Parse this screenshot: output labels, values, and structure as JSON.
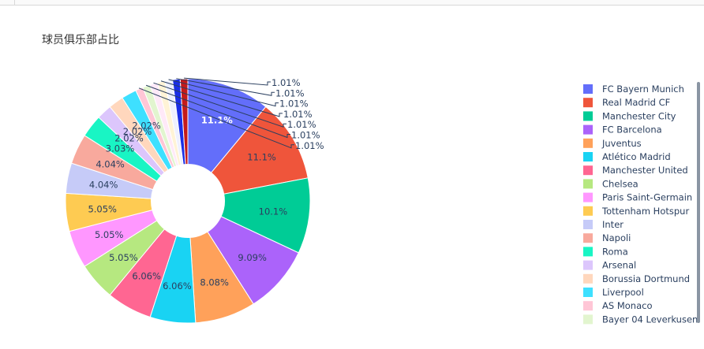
{
  "title": "球员俱乐部占比",
  "colors": {
    "label_dark": "#2a3f5f",
    "label_light": "#ffffff",
    "connector": "#2a3f5f"
  },
  "chart_data": {
    "type": "pie",
    "hole": 0.3,
    "title": "球员俱乐部占比",
    "legend_position": "right",
    "slices": [
      {
        "label": "FC Bayern Munich",
        "value": 11.1,
        "text": "11.1%",
        "color": "#636efa"
      },
      {
        "label": "Real Madrid CF",
        "value": 11.1,
        "text": "11.1%",
        "color": "#EF553B"
      },
      {
        "label": "Manchester City",
        "value": 10.1,
        "text": "10.1%",
        "color": "#00cc96"
      },
      {
        "label": "FC Barcelona",
        "value": 9.09,
        "text": "9.09%",
        "color": "#ab63fa"
      },
      {
        "label": "Juventus",
        "value": 8.08,
        "text": "8.08%",
        "color": "#FFA15A"
      },
      {
        "label": "Atlético Madrid",
        "value": 6.06,
        "text": "6.06%",
        "color": "#19d3f3"
      },
      {
        "label": "Manchester United",
        "value": 6.06,
        "text": "6.06%",
        "color": "#FF6692"
      },
      {
        "label": "Chelsea",
        "value": 5.05,
        "text": "5.05%",
        "color": "#B6E880"
      },
      {
        "label": "Paris Saint-Germain",
        "value": 5.05,
        "text": "5.05%",
        "color": "#FF97FF"
      },
      {
        "label": "Tottenham Hotspur",
        "value": 5.05,
        "text": "5.05%",
        "color": "#FECB52"
      },
      {
        "label": "Inter",
        "value": 4.04,
        "text": "4.04%",
        "color": "#c6cbf8"
      },
      {
        "label": "Napoli",
        "value": 4.04,
        "text": "4.04%",
        "color": "#f8a99d"
      },
      {
        "label": "Roma",
        "value": 3.03,
        "text": "3.03%",
        "color": "#19f5c4"
      },
      {
        "label": "Arsenal",
        "value": 2.02,
        "text": "2.02%",
        "color": "#dcc6fc"
      },
      {
        "label": "Borussia Dortmund",
        "value": 2.02,
        "text": "2.02%",
        "color": "#ffd7bd"
      },
      {
        "label": "Liverpool",
        "value": 2.02,
        "text": "2.02%",
        "color": "#3ee0ff"
      },
      {
        "label": "AS Monaco",
        "value": 1.01,
        "text": "1.01%",
        "color": "#ffc6d6"
      },
      {
        "label": "Bayer 04 Leverkusen",
        "value": 1.01,
        "text": "1.01%",
        "color": "#e2f5cf"
      },
      {
        "label": "",
        "value": 1.01,
        "text": "1.01%",
        "color": "#ffe9f8"
      },
      {
        "label": "",
        "value": 1.01,
        "text": "1.01%",
        "color": "#fff3d6"
      },
      {
        "label": "",
        "value": 1.01,
        "text": "1.01%",
        "color": "#eef0ff"
      },
      {
        "label": "",
        "value": 1.01,
        "text": "1.01%",
        "color": "#1a2ee6"
      },
      {
        "label": "",
        "value": 1.01,
        "text": "1.01%",
        "color": "#c41a1a"
      }
    ]
  }
}
